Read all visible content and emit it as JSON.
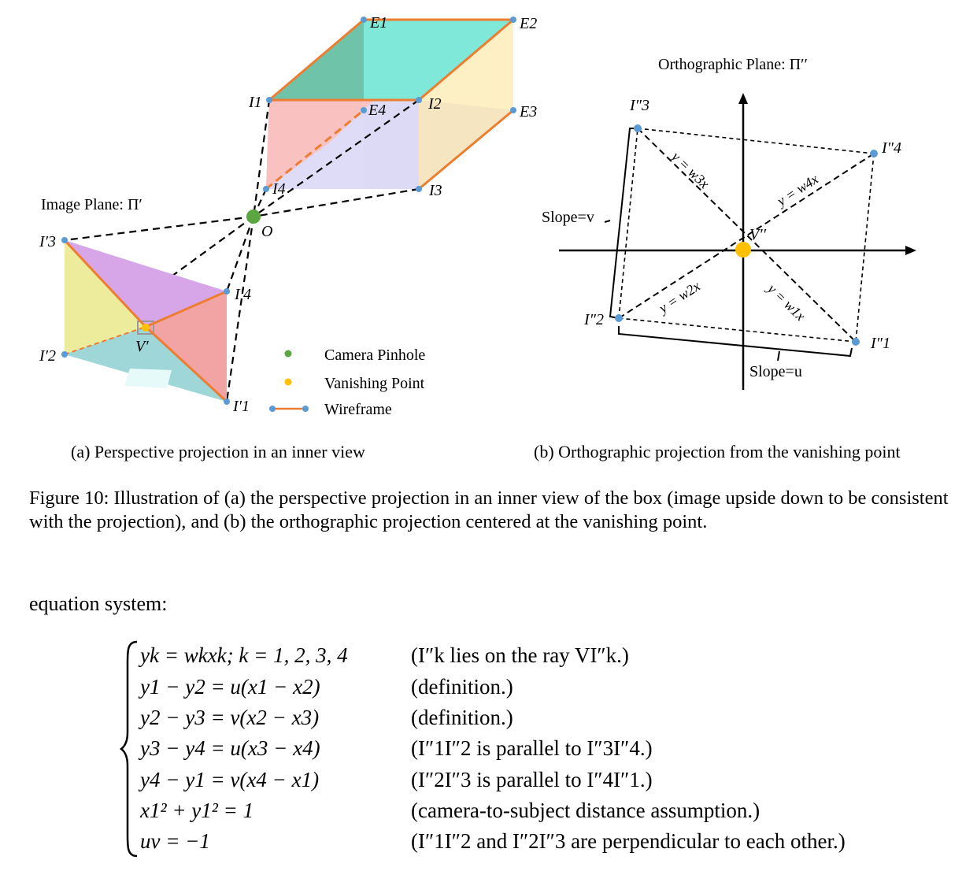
{
  "panel_a": {
    "image_plane_label": "Image Plane: Π′",
    "point_labels": {
      "E1": "E1",
      "E2": "E2",
      "E3": "E3",
      "E4": "E4",
      "I1": "I1",
      "I2": "I2",
      "I3": "I3",
      "I4": "I4",
      "O": "O",
      "I1p": "I′1",
      "I2p": "I′2",
      "I3p": "I′3",
      "I4p": "I′4",
      "Vp": "V′"
    },
    "legend": {
      "pinhole": "Camera Pinhole",
      "vanishing": "Vanishing Point",
      "wireframe": "Wireframe"
    },
    "caption": "(a) Perspective projection in an inner view"
  },
  "panel_b": {
    "title": "Orthographic Plane: Π′′",
    "point_labels": {
      "I1": "I″1",
      "I2": "I″2",
      "I3": "I″3",
      "I4": "I″4",
      "V": "V′′"
    },
    "ray_labels": {
      "w1": "y = w1x",
      "w2": "y = w2x",
      "w3": "y = w3x",
      "w4": "y = w4x"
    },
    "slope_v": "Slope=v",
    "slope_u": "Slope=u",
    "caption": "(b) Orthographic projection from the vanishing point"
  },
  "colors": {
    "pinhole": "#5aa640",
    "vanishing": "#ffc000",
    "wireframe_line": "#ed7d31",
    "wireframe_point": "#5b9bd5"
  },
  "figure_caption": "Figure 10: Illustration of (a) the perspective projection in an inner view of the box (image upside down to be consistent with the projection), and (b) the orthographic projection centered at the vanishing point.",
  "equation_intro": "equation system:",
  "equations": [
    {
      "lhs": "yk = wkxk; k = 1, 2, 3, 4",
      "note": "(I″k lies on the ray VI″k.)"
    },
    {
      "lhs": "y1 − y2 = u(x1 − x2)",
      "note": "(definition.)"
    },
    {
      "lhs": "y2 − y3 = v(x2 − x3)",
      "note": "(definition.)"
    },
    {
      "lhs": "y3 − y4 = u(x3 − x4)",
      "note": "(I″1I″2 is parallel to I″3I″4.)"
    },
    {
      "lhs": "y4 − y1 = v(x4 − x1)",
      "note": "(I″2I″3 is parallel to I″4I″1.)"
    },
    {
      "lhs": "x1² + y1² = 1",
      "note": "(camera-to-subject distance assumption.)"
    },
    {
      "lhs": "uv = −1",
      "note": "(I″1I″2 and I″2I″3 are perpendicular to each other.)"
    }
  ]
}
